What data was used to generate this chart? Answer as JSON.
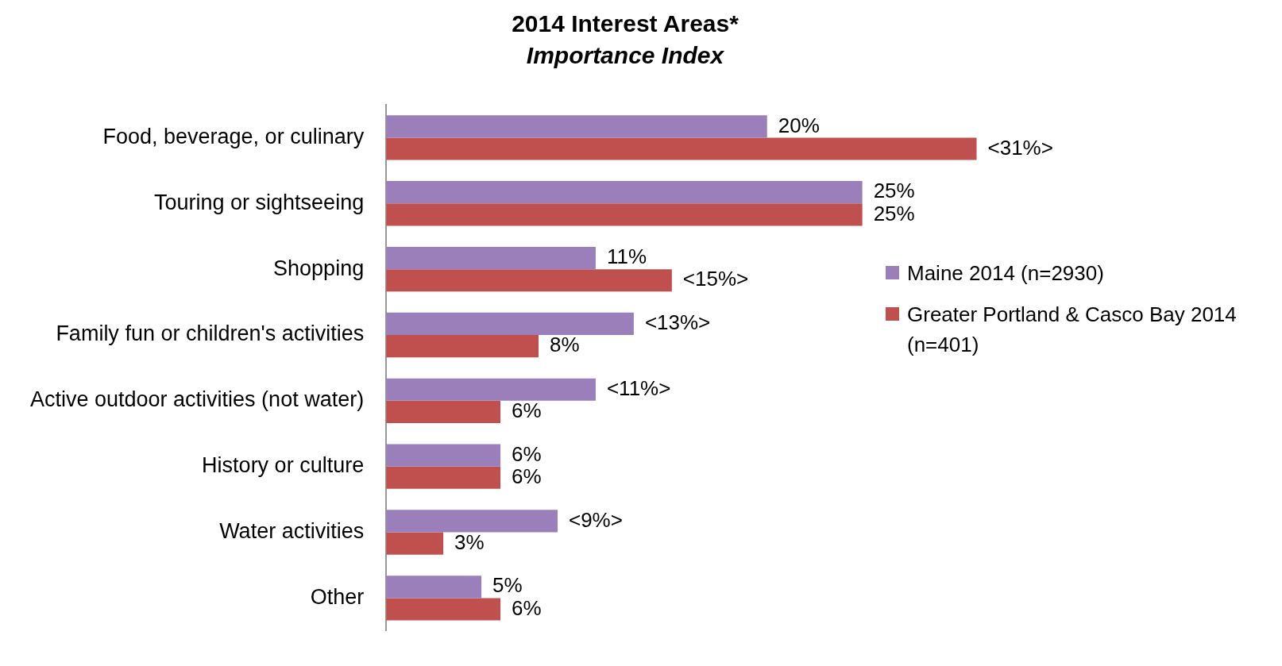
{
  "chart_data": {
    "type": "bar",
    "orientation": "horizontal",
    "title": "2014 Interest Areas*",
    "subtitle": "Importance Index",
    "categories": [
      "Food, beverage, or culinary",
      "Touring or sightseeing",
      "Shopping",
      "Family fun or children's activities",
      "Active outdoor activities (not water)",
      "History or culture",
      "Water activities",
      "Other"
    ],
    "series": [
      {
        "name": "Maine 2014 (n=2930)",
        "color": "#9b7fbb",
        "values": [
          20,
          25,
          11,
          13,
          11,
          6,
          9,
          5
        ],
        "value_labels": [
          "20%",
          "25%",
          "11%",
          "<13%>",
          "<11%>",
          "6%",
          "<9%>",
          "5%"
        ]
      },
      {
        "name": "Greater Portland & Casco Bay 2014 (n=401)",
        "color": "#c0504d",
        "values": [
          31,
          25,
          15,
          8,
          6,
          6,
          3,
          6
        ],
        "value_labels": [
          "<31%>",
          "25%",
          "<15%>",
          "8%",
          "6%",
          "6%",
          "3%",
          "6%"
        ]
      }
    ],
    "legend": "right",
    "tick_labels": "y"
  }
}
